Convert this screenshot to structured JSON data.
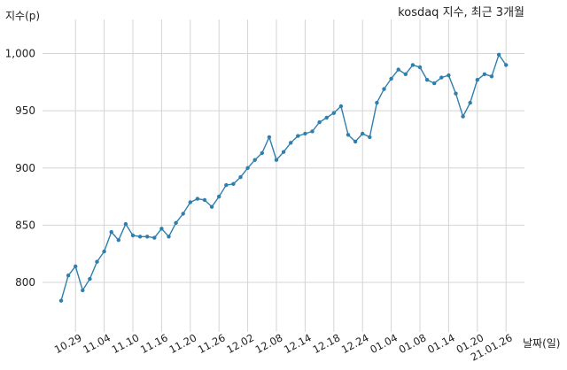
{
  "chart_data": {
    "type": "line",
    "title": "kosdaq 지수, 최근 3개월",
    "ylabel": "지수(p)",
    "xlabel": "날짜(일)",
    "ylim": [
      760,
      1020
    ],
    "yticks": [
      800,
      850,
      900,
      950,
      1000
    ],
    "ytick_labels": [
      "800",
      "850",
      "900",
      "950",
      "1,000"
    ],
    "xtick_labels": [
      "10.29",
      "11.04",
      "11.10",
      "11.16",
      "11.20",
      "11.26",
      "12.02",
      "12.08",
      "12.14",
      "12.18",
      "12.24",
      "01.04",
      "01.08",
      "01.14",
      "01.20",
      "21.01.26"
    ],
    "xtick_index": [
      2,
      6,
      10,
      14,
      18,
      22,
      26,
      30,
      34,
      38,
      42,
      46,
      50,
      54,
      58,
      62
    ],
    "grid": true,
    "series": [
      {
        "values": [
          784,
          806,
          814,
          793,
          803,
          818,
          827,
          844,
          837,
          851,
          841,
          840,
          840,
          839,
          847,
          840,
          852,
          860,
          870,
          873,
          872,
          866,
          875,
          885,
          886,
          892,
          900,
          907,
          913,
          927,
          907,
          914,
          922,
          928,
          930,
          932,
          940,
          944,
          948,
          954,
          929,
          923,
          930,
          927,
          957,
          969,
          978,
          986,
          982,
          990,
          988,
          977,
          974,
          979,
          981,
          965,
          945,
          957,
          977,
          982,
          980,
          999,
          990
        ]
      }
    ]
  }
}
